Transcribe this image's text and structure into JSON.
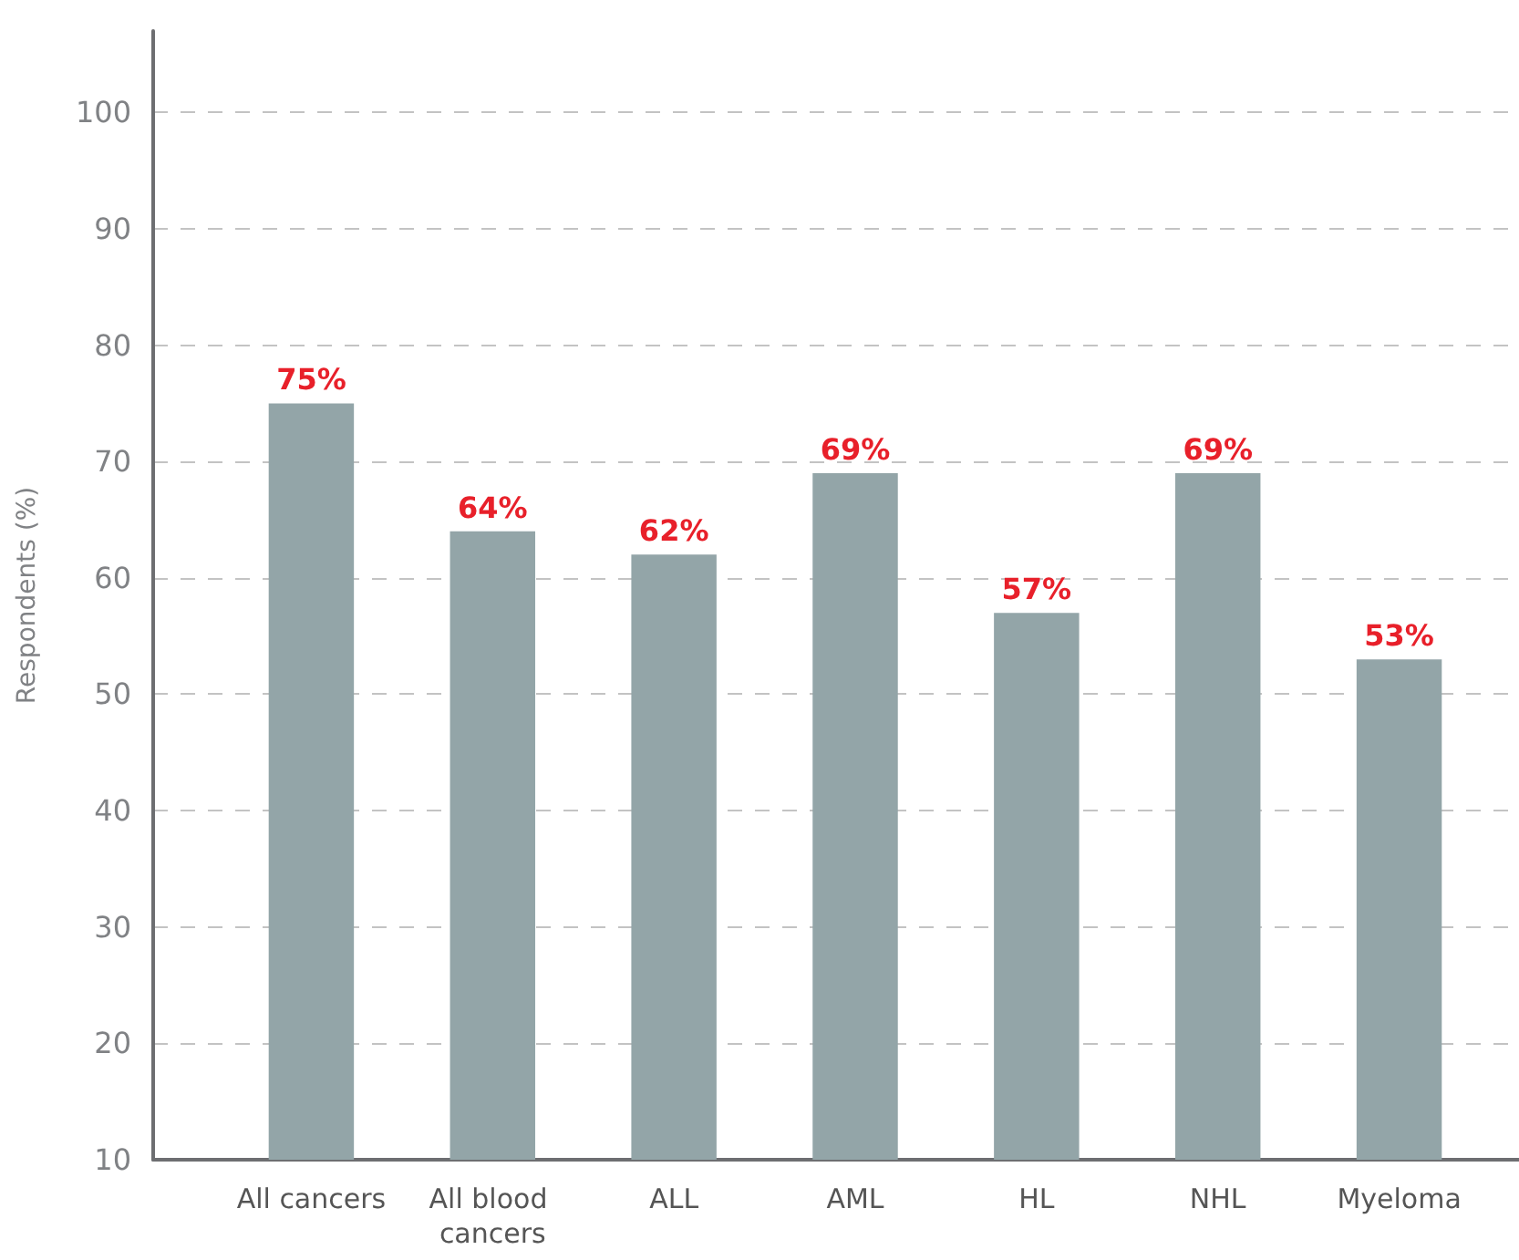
{
  "chart_data": {
    "type": "bar",
    "ylabel": "Respondents (%)",
    "categories": [
      "All cancers",
      "All blood cancers",
      "ALL",
      "AML",
      "HL",
      "NHL",
      "Myeloma"
    ],
    "values": [
      75,
      64,
      62,
      69,
      57,
      69,
      53
    ],
    "value_labels": [
      "75%",
      "64%",
      "62%",
      "69%",
      "57%",
      "69%",
      "53%"
    ],
    "color": "#93a5a8",
    "ylim": [
      10,
      107
    ],
    "yticks": [
      10,
      20,
      30,
      40,
      50,
      60,
      70,
      80,
      90,
      100
    ],
    "grid": "y"
  }
}
